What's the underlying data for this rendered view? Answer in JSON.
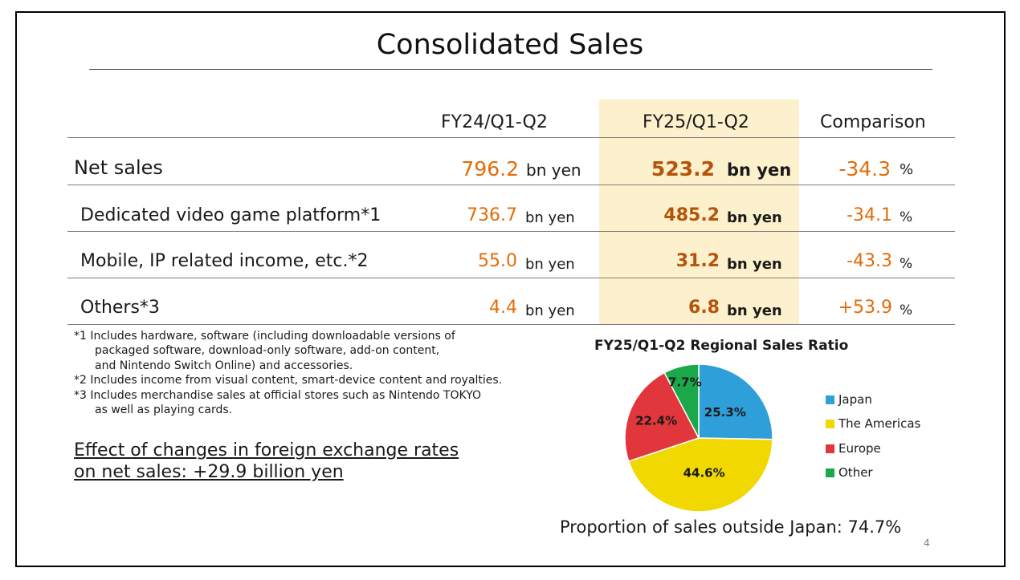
{
  "slide": {
    "title": "Consolidated Sales",
    "page_number": "4"
  },
  "table": {
    "columns": [
      "FY24/Q1-Q2",
      "FY25/Q1-Q2",
      "Comparison"
    ],
    "rows": [
      {
        "label": "Net sales",
        "fy24": "796.2",
        "fy25": "523.2",
        "comparison": "-34.3",
        "unit": "bn yen",
        "pct": "%"
      },
      {
        "label": "Dedicated video game platform*1",
        "fy24": "736.7",
        "fy25": "485.2",
        "comparison": "-34.1",
        "unit": "bn yen",
        "pct": "%"
      },
      {
        "label": "Mobile, IP related income, etc.*2",
        "fy24": "55.0",
        "fy25": "31.2",
        "comparison": "-43.3",
        "unit": "bn yen",
        "pct": "%"
      },
      {
        "label": "Others*3",
        "fy24": "4.4",
        "fy25": "6.8",
        "comparison": "+53.9",
        "unit": "bn yen",
        "pct": "%"
      }
    ]
  },
  "footnotes": [
    "*1 Includes hardware, software (including downloadable versions of",
    "packaged software, download-only software, add-on content,",
    "and Nintendo Switch Online) and accessories.",
    "*2 Includes income from visual content, smart-device content and royalties.",
    "*3 Includes merchandise sales at official stores such as Nintendo TOKYO",
    "as well as playing cards."
  ],
  "fx_effect": {
    "line1": "Effect of changes in foreign exchange rates",
    "line2": "on net sales: +29.9 billion yen"
  },
  "chart_data": {
    "type": "pie",
    "title": "FY25/Q1-Q2 Regional Sales Ratio",
    "slices": [
      {
        "name": "Japan",
        "value": 25.3,
        "label": "25.3%",
        "color": "#2e9fd8"
      },
      {
        "name": "The Americas",
        "value": 44.6,
        "label": "44.6%",
        "color": "#f0d800"
      },
      {
        "name": "Europe",
        "value": 22.4,
        "label": "22.4%",
        "color": "#e0363c"
      },
      {
        "name": "Other",
        "value": 7.7,
        "label": "7.7%",
        "color": "#1aa84b"
      }
    ],
    "legend_position": "right",
    "footer": "Proportion of sales outside Japan: 74.7%"
  },
  "colors": {
    "accent_orange": "#e36c0a",
    "highlight_column": "#fdf0cc"
  }
}
